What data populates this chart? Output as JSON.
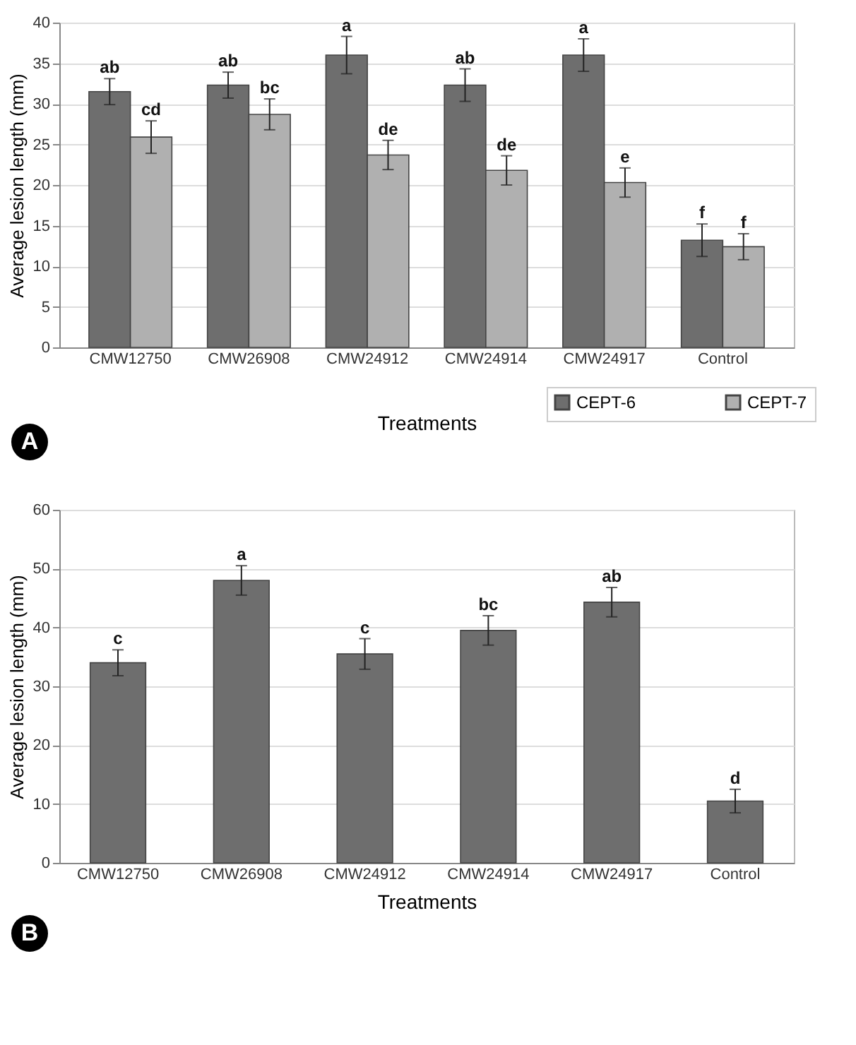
{
  "chart_data": [
    {
      "type": "bar",
      "xlabel": "Treatments",
      "ylabel": "Average lesion length (mm)",
      "annotations": [
        "A"
      ],
      "categories": [
        "CMW12750",
        "CMW26908",
        "CMW24912",
        "CMW24914",
        "CMW24917",
        "Control"
      ],
      "series": [
        {
          "name": "CEPT-6",
          "color": "#6e6e6e",
          "values": [
            31.5,
            32.3,
            36,
            32.3,
            36,
            13.2
          ],
          "errors": [
            1.6,
            1.6,
            2.3,
            2,
            2,
            2
          ],
          "value_labels": [
            "ab",
            "ab",
            "a",
            "ab",
            "a",
            "f"
          ]
        },
        {
          "name": "CEPT-7",
          "color": "#b0b0b0",
          "values": [
            25.9,
            28.7,
            23.7,
            21.8,
            20.3,
            12.4
          ],
          "errors": [
            2,
            1.9,
            1.8,
            1.8,
            1.8,
            1.6
          ],
          "value_labels": [
            "cd",
            "bc",
            "de",
            "de",
            "e",
            "f"
          ]
        }
      ],
      "ylim": [
        0,
        40
      ],
      "yticks": [
        0,
        5,
        10,
        15,
        20,
        25,
        30,
        35,
        40
      ],
      "grid": "y",
      "legend": "bottom right"
    },
    {
      "type": "bar",
      "xlabel": "Treatments",
      "ylabel": "Average lesion length (mm)",
      "annotations": [
        "B"
      ],
      "categories": [
        "CMW12750",
        "CMW26908",
        "CMW24912",
        "CMW24914",
        "CMW24917",
        "Control"
      ],
      "series": [
        {
          "color": "#6e6e6e",
          "values": [
            34,
            48,
            35.5,
            39.5,
            44.3,
            10.5
          ],
          "errors": [
            2.2,
            2.5,
            2.6,
            2.5,
            2.5,
            2
          ],
          "value_labels": [
            "c",
            "a",
            "c",
            "bc",
            "ab",
            "d"
          ]
        }
      ],
      "ylim": [
        0,
        60
      ],
      "yticks": [
        0,
        10,
        20,
        30,
        40,
        50,
        60
      ],
      "grid": "y"
    }
  ]
}
